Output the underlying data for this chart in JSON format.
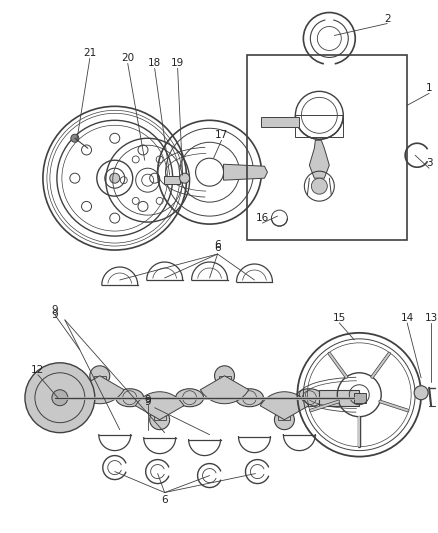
{
  "bg": "white",
  "lc": "#404040",
  "gray_fill": "#c8c8c8",
  "gray_mid": "#b0b0b0",
  "gray_dark": "#888888",
  "fig_w": 4.38,
  "fig_h": 5.33,
  "dpi": 100
}
